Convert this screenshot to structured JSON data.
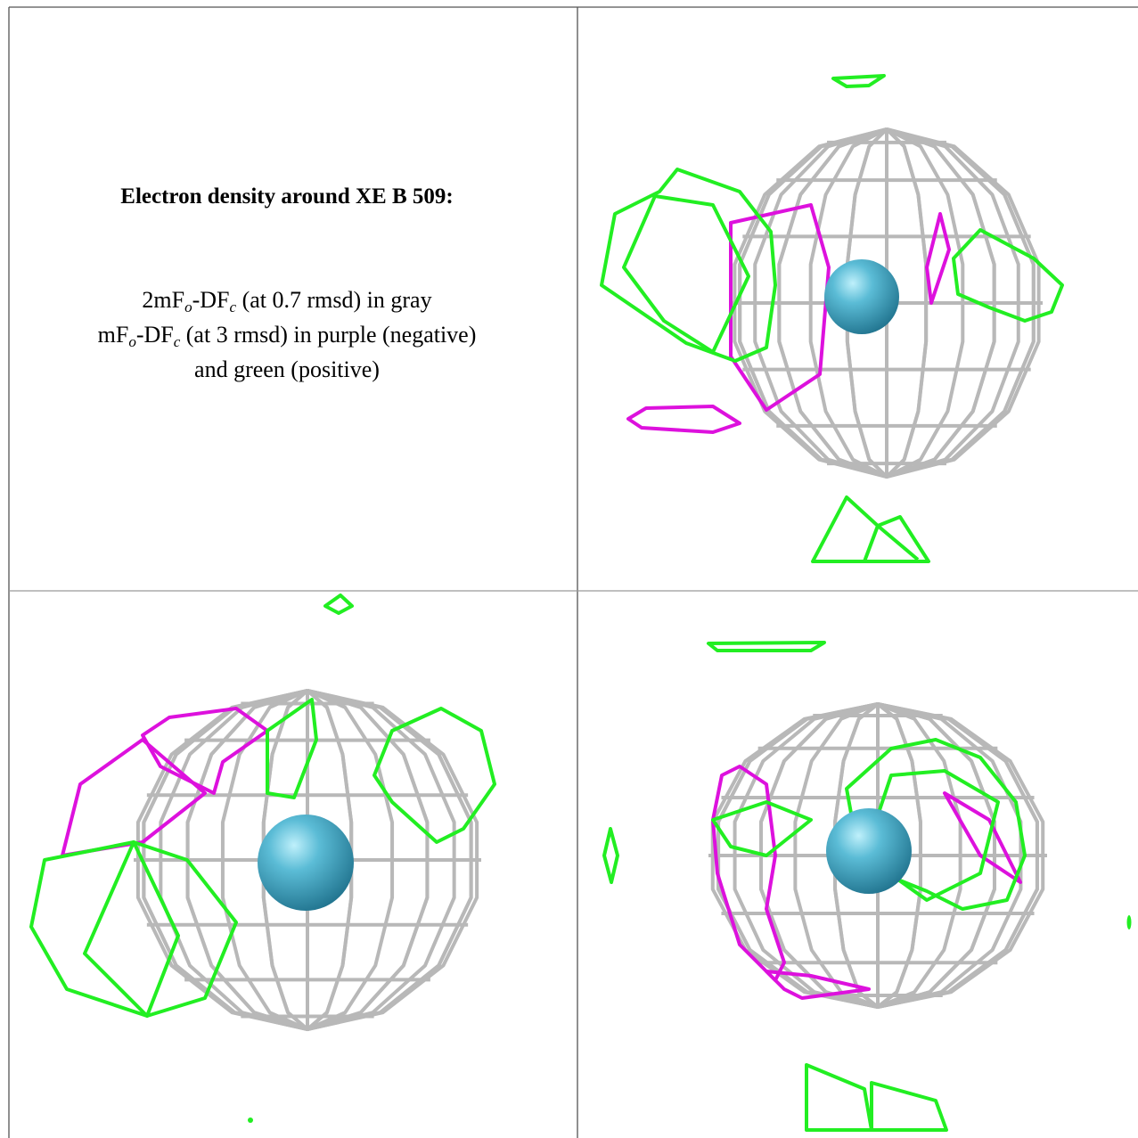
{
  "header": {
    "title": "Electron density around XE B 509:"
  },
  "legend": {
    "lines": [
      [
        {
          "text": "2mF"
        },
        {
          "text": "o",
          "sub": true
        },
        {
          "text": "-DF"
        },
        {
          "text": "c",
          "sub": true
        },
        {
          "text": " (at 0.7 rmsd) in gray"
        }
      ],
      [
        {
          "text": "mF"
        },
        {
          "text": "o",
          "sub": true
        },
        {
          "text": "-DF"
        },
        {
          "text": "c",
          "sub": true
        },
        {
          "text": " (at 3 rmsd) in purple (negative)"
        }
      ],
      [
        {
          "text": "and green (positive)"
        }
      ]
    ]
  }
}
